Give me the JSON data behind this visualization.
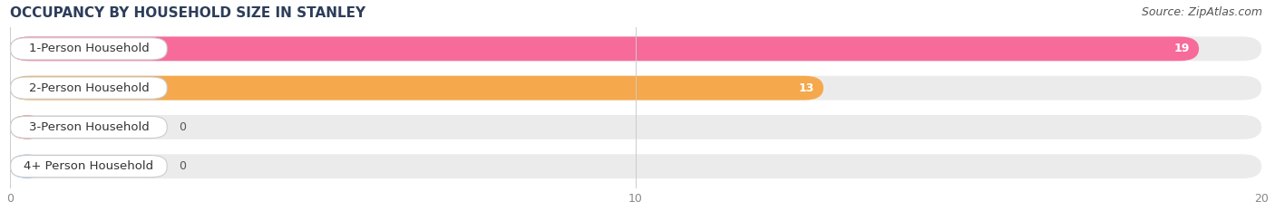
{
  "title": "OCCUPANCY BY HOUSEHOLD SIZE IN STANLEY",
  "source": "Source: ZipAtlas.com",
  "categories": [
    "1-Person Household",
    "2-Person Household",
    "3-Person Household",
    "4+ Person Household"
  ],
  "values": [
    19,
    13,
    0,
    0
  ],
  "bar_colors": [
    "#F76B9B",
    "#F5A84C",
    "#F0918B",
    "#A8C4EE"
  ],
  "xlim": [
    0,
    20
  ],
  "xticks": [
    0,
    10,
    20
  ],
  "background_color": "#ffffff",
  "bar_bg_color": "#ebebeb",
  "title_fontsize": 11,
  "source_fontsize": 9,
  "label_fontsize": 9.5,
  "value_fontsize": 9
}
